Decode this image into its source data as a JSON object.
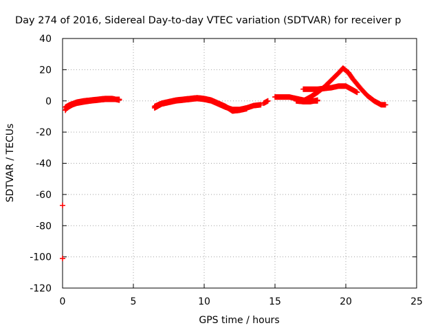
{
  "chart_data": {
    "type": "scatter",
    "title": "Day 274 of 2016, Sidereal Day-to-day VTEC variation (SDTVAR) for receiver p",
    "xlabel": "GPS time / hours",
    "ylabel": "SDTVAR / TECUs",
    "xlim": [
      0,
      25
    ],
    "ylim": [
      -120,
      40
    ],
    "xticks": [
      0,
      5,
      10,
      15,
      20,
      25
    ],
    "yticks": [
      -120,
      -100,
      -80,
      -60,
      -40,
      -20,
      0,
      20,
      40
    ],
    "grid": true,
    "legend": "none",
    "marker": "plus",
    "color": "#ff0000",
    "series": [
      {
        "segments": [
          [
            [
              0.2,
              -6
            ],
            [
              0.3,
              -4.5
            ],
            [
              0.5,
              -3.5
            ],
            [
              0.7,
              -2.5
            ],
            [
              1.0,
              -1.5
            ],
            [
              1.3,
              -1
            ],
            [
              1.6,
              -0.5
            ],
            [
              2.0,
              0
            ],
            [
              2.5,
              0.5
            ],
            [
              3.0,
              1
            ],
            [
              3.5,
              1
            ],
            [
              4.0,
              1
            ]
          ],
          [
            [
              0.2,
              -4
            ],
            [
              0.5,
              -2.5
            ],
            [
              1.0,
              -0.8
            ],
            [
              1.5,
              0
            ],
            [
              2.0,
              0.5
            ],
            [
              2.5,
              1
            ],
            [
              3.0,
              1.5
            ],
            [
              3.5,
              1.5
            ],
            [
              4.0,
              0.5
            ]
          ],
          [
            [
              6.5,
              -4.5
            ],
            [
              6.8,
              -3
            ],
            [
              7.0,
              -2
            ],
            [
              7.5,
              -1
            ],
            [
              8.0,
              0
            ],
            [
              8.5,
              0.5
            ],
            [
              9.0,
              1
            ],
            [
              9.5,
              1.5
            ],
            [
              10.0,
              1
            ],
            [
              10.5,
              0
            ],
            [
              11.0,
              -2
            ],
            [
              11.5,
              -4
            ],
            [
              12.0,
              -5.5
            ],
            [
              12.5,
              -5.5
            ],
            [
              13.0,
              -4.5
            ],
            [
              13.5,
              -3
            ],
            [
              14.0,
              -2.5
            ]
          ],
          [
            [
              6.5,
              -3.5
            ],
            [
              7.0,
              -1.5
            ],
            [
              7.5,
              -0.5
            ],
            [
              8.0,
              0.5
            ],
            [
              8.5,
              1
            ],
            [
              9.0,
              1.5
            ],
            [
              9.5,
              2
            ],
            [
              10.0,
              1.5
            ],
            [
              10.5,
              0.5
            ],
            [
              11.0,
              -1.5
            ],
            [
              11.5,
              -3.5
            ],
            [
              12.0,
              -6.5
            ],
            [
              12.5,
              -6
            ],
            [
              13.0,
              -5
            ]
          ],
          [
            [
              14.2,
              -1.5
            ],
            [
              14.5,
              0
            ]
          ],
          [
            [
              15.0,
              2.5
            ],
            [
              15.5,
              2.5
            ],
            [
              16.0,
              2.5
            ],
            [
              16.5,
              1.5
            ],
            [
              17.0,
              0.5
            ],
            [
              17.5,
              0
            ],
            [
              18.0,
              0
            ]
          ],
          [
            [
              16.5,
              0
            ],
            [
              17.0,
              -0.5
            ],
            [
              17.5,
              -0.5
            ],
            [
              18.0,
              0.5
            ]
          ],
          [
            [
              17.0,
              7.5
            ],
            [
              17.5,
              7.5
            ],
            [
              18.0,
              7.5
            ],
            [
              18.5,
              8
            ],
            [
              19.0,
              8.5
            ],
            [
              19.5,
              9.5
            ],
            [
              20.0,
              9.5
            ],
            [
              20.5,
              7
            ],
            [
              20.8,
              5.5
            ]
          ],
          [
            [
              17.0,
              0
            ],
            [
              17.5,
              2.5
            ],
            [
              18.0,
              5.5
            ],
            [
              18.5,
              9
            ],
            [
              19.0,
              13.5
            ],
            [
              19.5,
              18
            ],
            [
              19.8,
              21
            ],
            [
              20.2,
              18
            ],
            [
              20.5,
              14
            ],
            [
              21.0,
              8.5
            ],
            [
              21.5,
              3.5
            ],
            [
              22.0,
              0
            ],
            [
              22.5,
              -2.5
            ],
            [
              22.8,
              -2.5
            ]
          ]
        ]
      }
    ],
    "outliers": [
      [
        0.0,
        -67
      ],
      [
        0.0,
        -101
      ]
    ]
  }
}
